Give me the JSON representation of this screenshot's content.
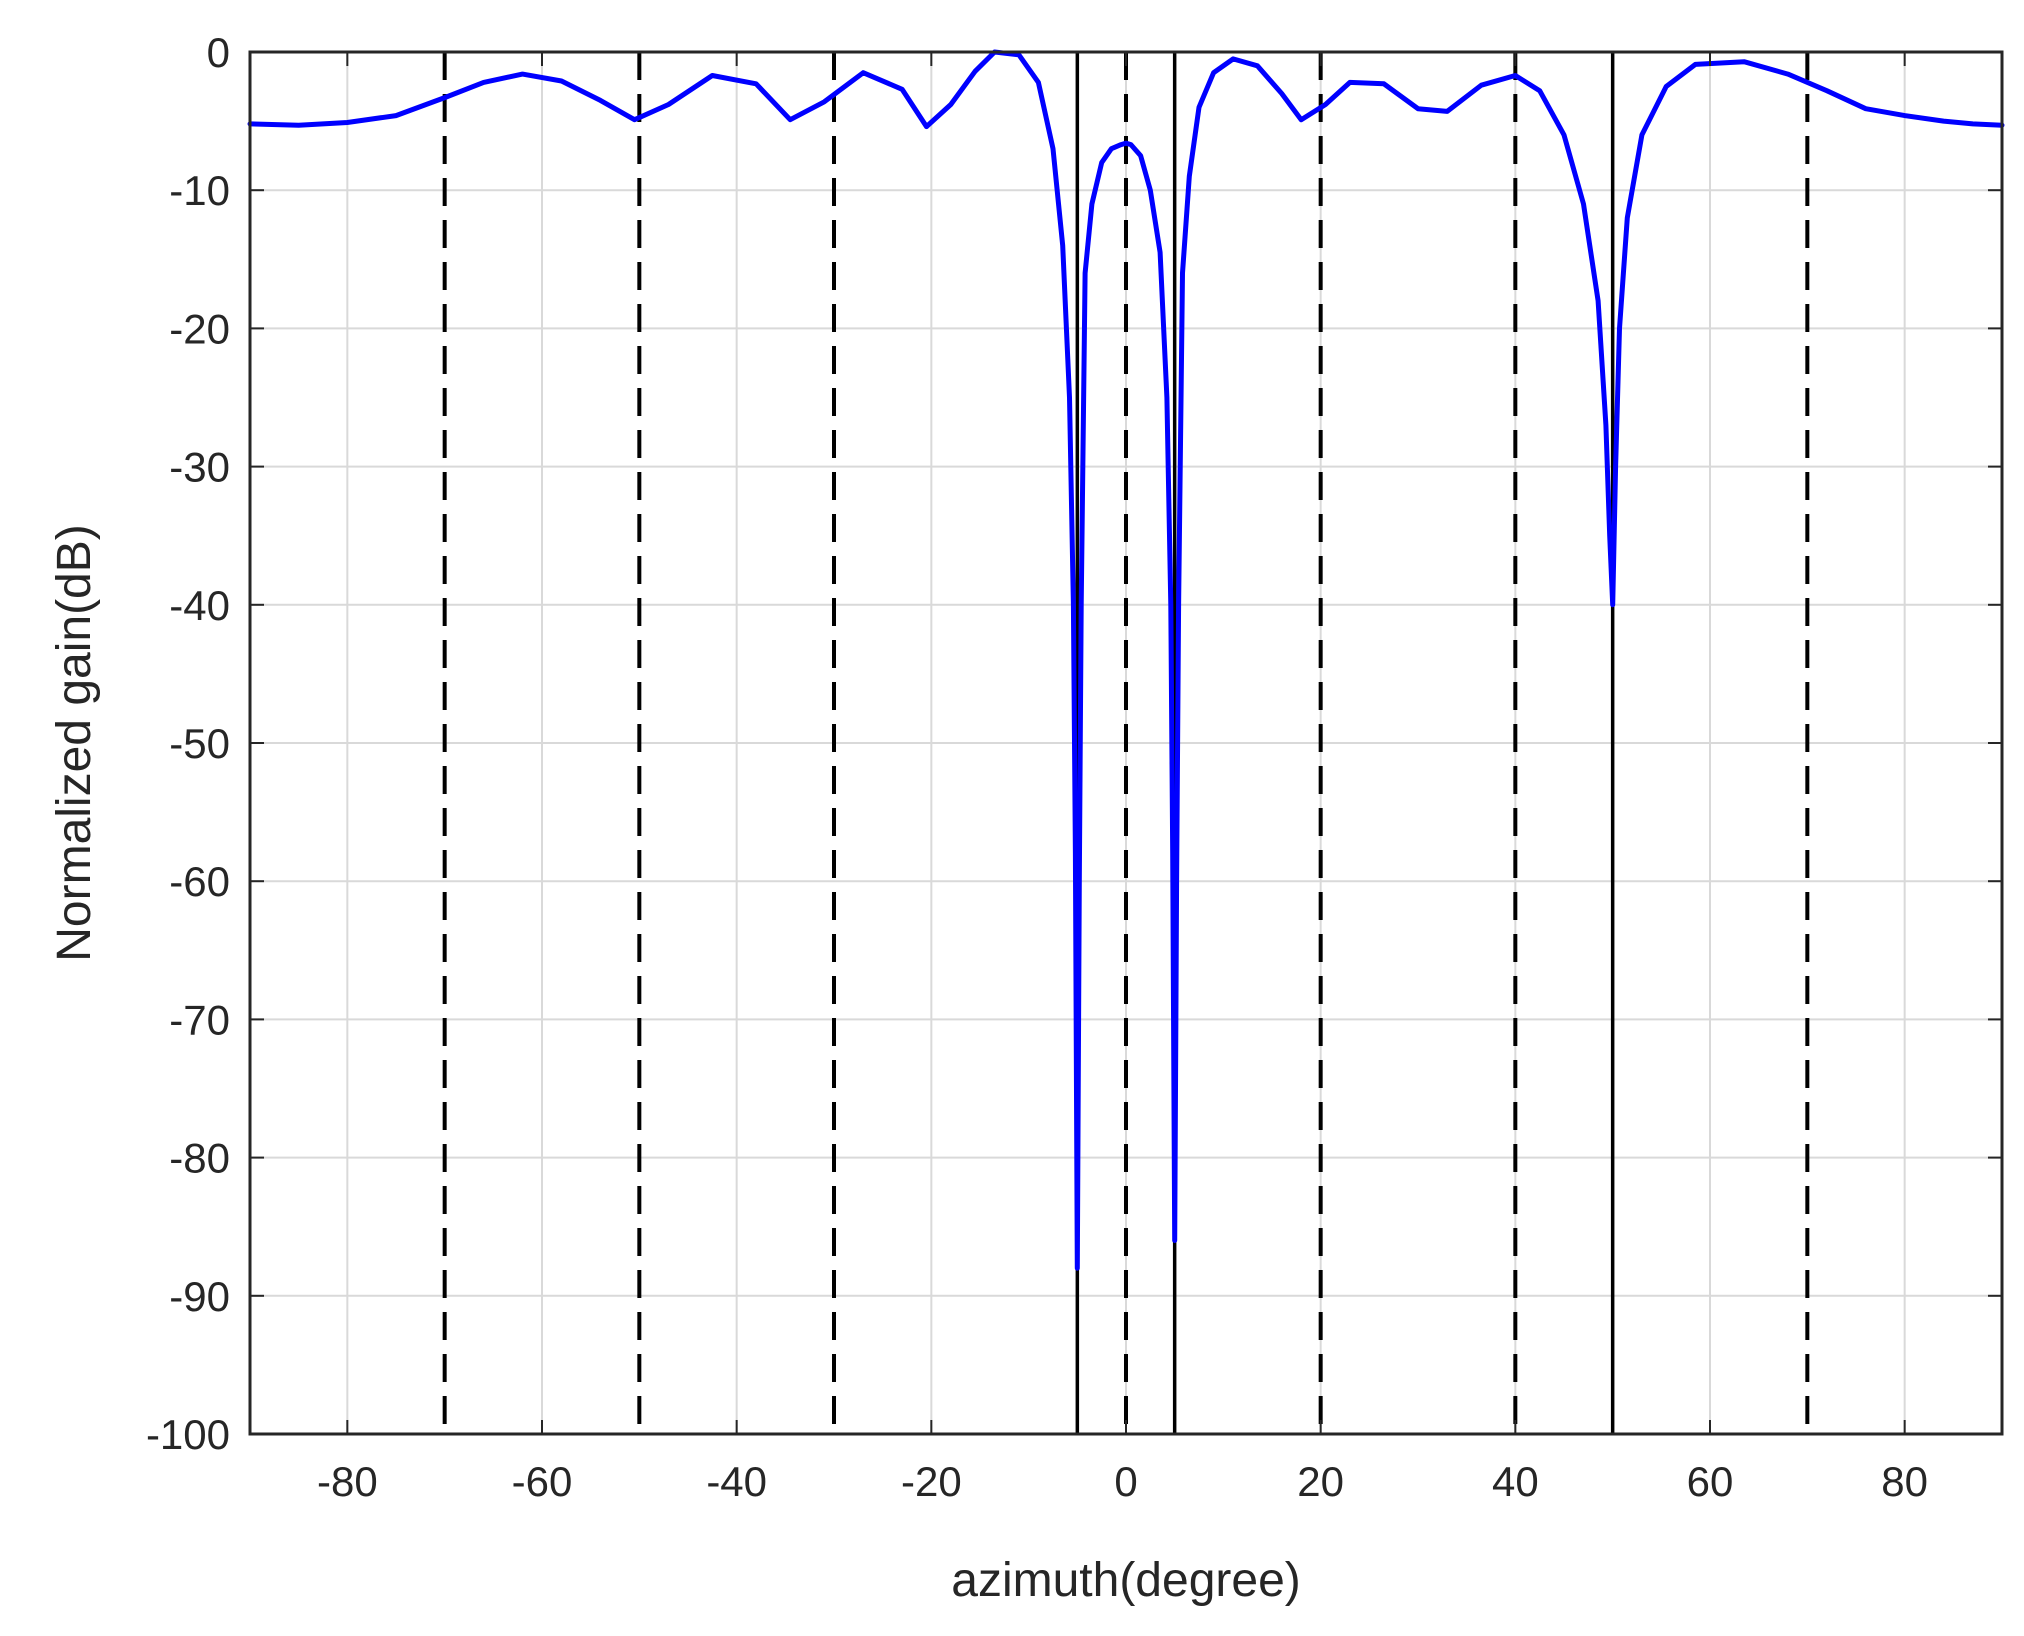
{
  "chart_data": {
    "type": "line",
    "title": "",
    "xlabel": "azimuth(degree)",
    "ylabel": "Normalized gain(dB)",
    "xlim": [
      -90,
      90
    ],
    "ylim": [
      -100,
      0
    ],
    "xticks": [
      -80,
      -60,
      -40,
      -20,
      0,
      20,
      40,
      60,
      80
    ],
    "yticks": [
      0,
      -10,
      -20,
      -30,
      -40,
      -50,
      -60,
      -70,
      -80,
      -90,
      -100
    ],
    "grid": true,
    "legend": "none",
    "colors": {
      "line": "#0000ff",
      "markers": "#000000",
      "grid": "#d9d9d9",
      "axes": "#262626"
    },
    "vertical_lines": {
      "solid": [
        -5,
        5,
        50
      ],
      "dashed": [
        -70,
        -50,
        -30,
        0,
        20,
        40,
        70
      ]
    },
    "series": [
      {
        "x": [
          -90,
          -85,
          -80,
          -75,
          -70,
          -66,
          -62,
          -58,
          -54,
          -50.5,
          -47,
          -42.5,
          -38,
          -34.5,
          -31,
          -27,
          -23,
          -20.5,
          -18,
          -15.5,
          -13.5,
          -11,
          -9,
          -7.5,
          -6.5,
          -5.8,
          -5.4,
          -5.2,
          -5.0,
          -4.8,
          -4.6,
          -4.2,
          -3.5,
          -2.5,
          -1.5,
          -0.5,
          0.0,
          0.5,
          1.5,
          2.5,
          3.5,
          4.2,
          4.6,
          4.8,
          5.0,
          5.2,
          5.4,
          5.8,
          6.5,
          7.5,
          9,
          11,
          13.5,
          16,
          18,
          20.5,
          23,
          26.5,
          30,
          33,
          36.5,
          40,
          42.5,
          45,
          47,
          48.5,
          49.3,
          49.7,
          50.0,
          50.3,
          50.7,
          51.5,
          53,
          55.5,
          58.5,
          63.5,
          68,
          72,
          76,
          80,
          84,
          87,
          90
        ],
        "y": [
          -5.2,
          -5.3,
          -5.1,
          -4.6,
          -3.3,
          -2.2,
          -1.6,
          -2.1,
          -3.5,
          -4.9,
          -3.8,
          -1.7,
          -2.3,
          -4.9,
          -3.6,
          -1.5,
          -2.7,
          -5.4,
          -3.8,
          -1.4,
          0,
          -0.2,
          -2.2,
          -7.0,
          -14.0,
          -25.0,
          -40.0,
          -58.0,
          -88.0,
          -60.0,
          -40.0,
          -16.0,
          -11.0,
          -8.0,
          -7.0,
          -6.7,
          -6.6,
          -6.7,
          -7.5,
          -10.0,
          -14.5,
          -25.0,
          -40.0,
          -58.0,
          -86.0,
          -60.0,
          -40.0,
          -16.0,
          -9.0,
          -4.0,
          -1.5,
          -0.5,
          -1.0,
          -3.0,
          -4.9,
          -3.8,
          -2.2,
          -2.3,
          -4.1,
          -4.3,
          -2.4,
          -1.7,
          -2.8,
          -6.0,
          -11.0,
          -18.0,
          -27.0,
          -35.0,
          -40.0,
          -30.0,
          -20.0,
          -12.0,
          -6.0,
          -2.5,
          -0.9,
          -0.7,
          -1.6,
          -2.8,
          -4.1,
          -4.6,
          -5.0,
          -5.2,
          -5.3
        ]
      }
    ]
  }
}
